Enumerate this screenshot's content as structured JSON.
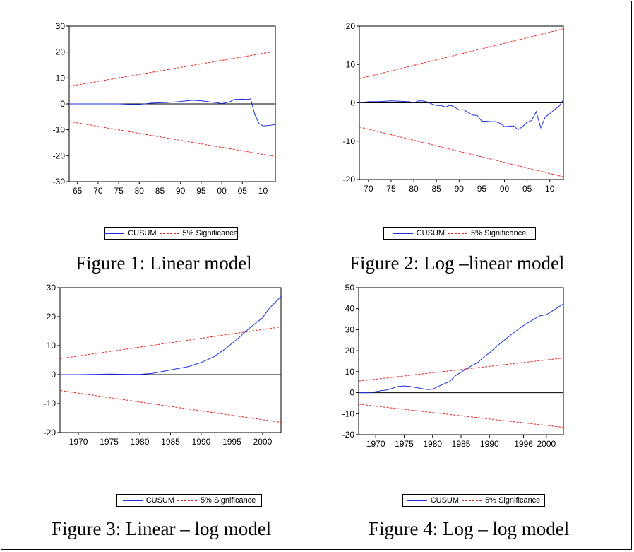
{
  "colors": {
    "cusum": "#1f2fdc",
    "significance": "#e0201c",
    "axis": "#000000"
  },
  "legend": {
    "series1": "CUSUM",
    "series2": "5% Significance"
  },
  "captions": {
    "fig1": "Figure 1: Linear model",
    "fig2": "Figure 2: Log –linear model",
    "fig3": "Figure 3: Linear – log model",
    "fig4": "Figure 4: Log – log model"
  },
  "chart_data": [
    {
      "type": "line",
      "xlim": [
        1963,
        2013
      ],
      "ylim": [
        -30,
        30
      ],
      "yticks": [
        -30,
        -20,
        -10,
        0,
        10,
        20,
        30
      ],
      "xticks": [
        1965,
        1970,
        1975,
        1980,
        1985,
        1990,
        1995,
        2000,
        2005,
        2010
      ],
      "xticklabels": [
        "65",
        "70",
        "75",
        "80",
        "85",
        "90",
        "95",
        "00",
        "05",
        "10"
      ],
      "zero_line": true,
      "legend_position": "bottom",
      "series": [
        {
          "name": "CUSUM",
          "x": [
            1963,
            1966,
            1970,
            1975,
            1978,
            1980,
            1983,
            1986,
            1989,
            1991,
            1993,
            1994,
            1995,
            1997,
            1999,
            2000,
            2002,
            2003,
            2005,
            2006,
            2007,
            2008,
            2009,
            2010,
            2011,
            2013
          ],
          "y": [
            0,
            0,
            0,
            0,
            -0.2,
            -0.2,
            0.3,
            0.5,
            0.8,
            1.1,
            1.4,
            1.3,
            1.2,
            0.8,
            0.4,
            0.1,
            0.8,
            1.7,
            1.8,
            1.7,
            1.9,
            -4,
            -7.5,
            -8.5,
            -8.4,
            -8
          ]
        },
        {
          "name": "5% Significance",
          "x": [
            1963,
            2013
          ],
          "y": [
            6.8,
            20.3
          ]
        },
        {
          "name": "5% Significance",
          "x": [
            1963,
            2013
          ],
          "y": [
            -6.8,
            -20.3
          ]
        }
      ]
    },
    {
      "type": "line",
      "xlim": [
        1968,
        2013
      ],
      "ylim": [
        -20,
        20
      ],
      "yticks": [
        -20,
        -10,
        0,
        10,
        20
      ],
      "xticks": [
        1970,
        1975,
        1980,
        1985,
        1990,
        1995,
        2000,
        2005,
        2010
      ],
      "xticklabels": [
        "70",
        "75",
        "80",
        "85",
        "90",
        "95",
        "00",
        "05",
        "10"
      ],
      "zero_line": true,
      "legend_position": "bottom",
      "series": [
        {
          "name": "CUSUM",
          "x": [
            1968,
            1970,
            1972,
            1975,
            1977,
            1979,
            1980,
            1981,
            1982,
            1983,
            1984,
            1985,
            1986,
            1987,
            1988,
            1989,
            1990,
            1991,
            1992,
            1993,
            1994,
            1995,
            1996,
            1997,
            1998,
            1999,
            2000,
            2001,
            2002,
            2003,
            2004,
            2005,
            2006,
            2007,
            2008,
            2009,
            2010,
            2011,
            2012,
            2013
          ],
          "y": [
            0,
            0.3,
            0.3,
            0.5,
            0.4,
            0.3,
            0,
            0.5,
            0.5,
            0.2,
            -0.3,
            -0.7,
            -0.7,
            -1.1,
            -0.6,
            -1.1,
            -1.9,
            -1.8,
            -2.5,
            -3.2,
            -3.3,
            -4.8,
            -4.8,
            -4.9,
            -4.9,
            -5.3,
            -6.2,
            -6.1,
            -6.0,
            -7.0,
            -6.2,
            -5.1,
            -4.6,
            -2.3,
            -6.5,
            -3.7,
            -2.8,
            -1.8,
            -0.9,
            0.8
          ]
        },
        {
          "name": "5% Significance",
          "x": [
            1968,
            2013
          ],
          "y": [
            6.3,
            19.3
          ]
        },
        {
          "name": "5% Significance",
          "x": [
            1968,
            2013
          ],
          "y": [
            -6.3,
            -19.3
          ]
        }
      ]
    },
    {
      "type": "line",
      "xlim": [
        1967,
        2003
      ],
      "ylim": [
        -20,
        30
      ],
      "yticks": [
        -20,
        -10,
        0,
        10,
        20,
        30
      ],
      "xticks": [
        1970,
        1975,
        1980,
        1985,
        1990,
        1995,
        2000
      ],
      "xticklabels": [
        "1970",
        "1975",
        "1980",
        "1985",
        "1990",
        "1995",
        "2000"
      ],
      "zero_line": true,
      "legend_position": "bottom",
      "series": [
        {
          "name": "CUSUM",
          "x": [
            1967,
            1970,
            1973,
            1975,
            1978,
            1980,
            1982,
            1984,
            1986,
            1988,
            1989,
            1990,
            1992,
            1994,
            1996,
            1998,
            2000,
            2001,
            2003
          ],
          "y": [
            0,
            0,
            0.1,
            0.2,
            0.1,
            0.1,
            0.4,
            1.2,
            2,
            2.8,
            3.5,
            4.2,
            6.1,
            9,
            12.5,
            16.3,
            19.6,
            22.6,
            27
          ]
        },
        {
          "name": "5% Significance",
          "x": [
            1967,
            2003
          ],
          "y": [
            5.5,
            16.5
          ]
        },
        {
          "name": "5% Significance",
          "x": [
            1967,
            2003
          ],
          "y": [
            -5.5,
            -16.5
          ]
        }
      ]
    },
    {
      "type": "line",
      "xlim": [
        1967,
        2003
      ],
      "ylim": [
        -20,
        50
      ],
      "yticks": [
        -20,
        -10,
        0,
        10,
        20,
        30,
        40,
        50
      ],
      "xticks": [
        1970,
        1975,
        1980,
        1985,
        1990,
        1996,
        2000
      ],
      "xticklabels": [
        "1970",
        "1975",
        "1980",
        "1985",
        "1990",
        "1996",
        "2000"
      ],
      "zero_line": true,
      "legend_position": "bottom",
      "series": [
        {
          "name": "CUSUM",
          "x": [
            1967,
            1969,
            1971,
            1972,
            1974,
            1975,
            1976,
            1978,
            1979,
            1980,
            1981,
            1983,
            1984,
            1986,
            1988,
            1989,
            1990,
            1992,
            1994,
            1996,
            1998,
            1999,
            2000,
            2001,
            2003
          ],
          "y": [
            0,
            0,
            1,
            1.3,
            3,
            3.2,
            3,
            2,
            1.5,
            1.6,
            3,
            5.3,
            8,
            11.5,
            14.5,
            17,
            19,
            23.7,
            28,
            32,
            35.3,
            36.7,
            37.1,
            38.8,
            42.3
          ]
        },
        {
          "name": "5% Significance",
          "x": [
            1967,
            2003
          ],
          "y": [
            5.5,
            16.5
          ]
        },
        {
          "name": "5% Significance",
          "x": [
            1967,
            2003
          ],
          "y": [
            -5.5,
            -16.5
          ]
        }
      ]
    }
  ]
}
